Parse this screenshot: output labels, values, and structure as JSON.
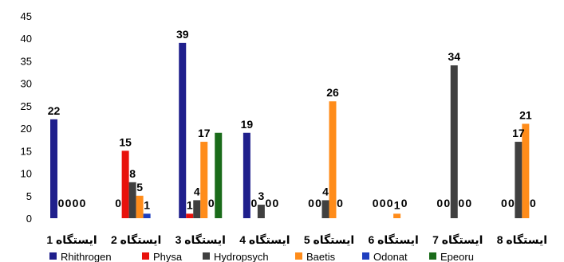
{
  "chart_data": {
    "type": "bar",
    "title": "",
    "xlabel": "",
    "ylabel": "",
    "ylim": [
      0,
      45
    ],
    "yticks": [
      "0",
      "5",
      "10",
      "15",
      "20",
      "25",
      "30",
      "35",
      "40",
      "45"
    ],
    "grid": false,
    "legend_position": "bottom",
    "categories": [
      "ایستگاه 1",
      "ایستگاه 2",
      "ایستگاه 3",
      "ایستگاه 4",
      "ایستگاه 5",
      "ایستگاه 6",
      "ایستگاه 7",
      "ایستگاه 8"
    ],
    "series": [
      {
        "name": "Rhithrogen",
        "color": "#1f1f8c",
        "values": [
          22,
          0,
          39,
          19,
          0,
          0,
          0,
          0
        ]
      },
      {
        "name": "Physa",
        "color": "#e8120c",
        "values": [
          0,
          15,
          1,
          0,
          0,
          0,
          0,
          0
        ]
      },
      {
        "name": "Hydropsych",
        "color": "#404040",
        "values": [
          0,
          8,
          4,
          3,
          4,
          0,
          34,
          17
        ]
      },
      {
        "name": "Baetis",
        "color": "#ff8c1a",
        "values": [
          0,
          5,
          17,
          0,
          26,
          1,
          0,
          21
        ]
      },
      {
        "name": "Odonat",
        "color": "#1f3fbf",
        "values": [
          0,
          1,
          0,
          0,
          0,
          0,
          0,
          0
        ]
      },
      {
        "name": "Epeoru",
        "color": "#1a6b1a",
        "values": [
          0,
          0,
          19,
          0,
          0,
          0,
          0,
          0
        ]
      }
    ],
    "data_labels": [
      [
        "22",
        "0",
        "0",
        "0",
        "0",
        ""
      ],
      [
        "0",
        "15",
        "8",
        "5",
        "1",
        ""
      ],
      [
        "39",
        "1",
        "4",
        "17",
        "0",
        ""
      ],
      [
        "19",
        "0",
        "3",
        "0",
        "0",
        ""
      ],
      [
        "0",
        "0",
        "4",
        "26",
        "0",
        ""
      ],
      [
        "0",
        "0",
        "0",
        "1",
        "0",
        ""
      ],
      [
        "0",
        "0",
        "34",
        "0",
        "0",
        ""
      ],
      [
        "0",
        "0",
        "17",
        "21",
        "0",
        ""
      ]
    ]
  }
}
